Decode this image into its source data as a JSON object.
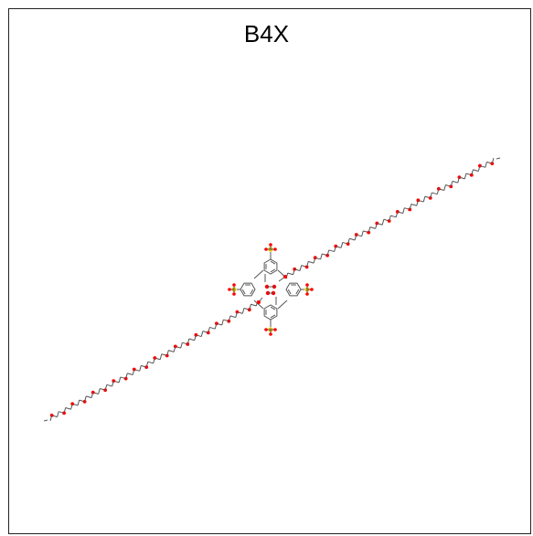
{
  "title": "B4X",
  "colors": {
    "bond": "#555555",
    "oxygen": "#ff0000",
    "sulfur": "#e8c000",
    "frame": "#222222"
  }
}
